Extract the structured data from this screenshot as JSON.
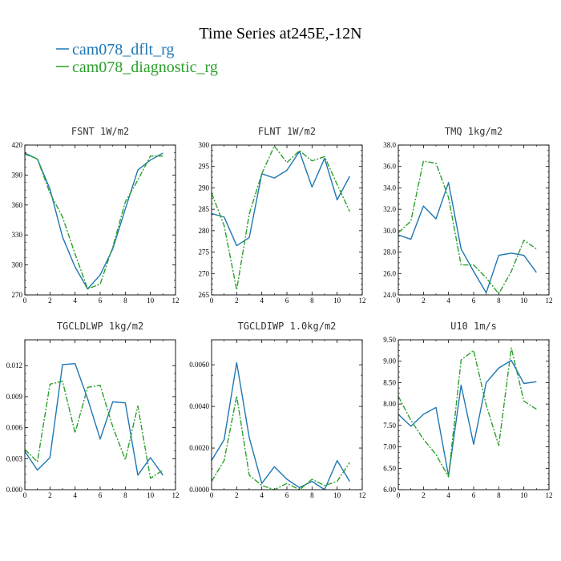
{
  "title": "Time Series at245E,-12N",
  "colors": {
    "series1": "#1f77b4",
    "series2": "#2ca02c"
  },
  "legend": [
    {
      "label": "cam078_dflt_rg",
      "color": "#1f77b4",
      "style": "solid"
    },
    {
      "label": "cam078_diagnostic_rg",
      "color": "#2ca02c",
      "style": "dashdot"
    }
  ],
  "chart_data": [
    {
      "type": "line",
      "title": "FSNT   1W/m2",
      "x": [
        0,
        1,
        2,
        3,
        4,
        5,
        6,
        7,
        8,
        9,
        10,
        11
      ],
      "xlim": [
        0,
        12
      ],
      "xticks": [
        "0",
        "2",
        "4",
        "6",
        "8",
        "10",
        "12"
      ],
      "ylim": [
        270,
        420
      ],
      "yticks": [
        "270",
        "300",
        "330",
        "360",
        "390",
        "420"
      ],
      "series": [
        {
          "name": "cam078_dflt_rg",
          "values": [
            412,
            406,
            376,
            328,
            298,
            276,
            290,
            316,
            356,
            395,
            405,
            412
          ]
        },
        {
          "name": "cam078_diagnostic_rg",
          "values": [
            411,
            406,
            372,
            348,
            311,
            276,
            281,
            318,
            363,
            385,
            409,
            409
          ]
        }
      ]
    },
    {
      "type": "line",
      "title": "FLNT   1W/m2",
      "x": [
        0,
        1,
        2,
        3,
        4,
        5,
        6,
        7,
        8,
        9,
        10,
        11
      ],
      "xlim": [
        0,
        12
      ],
      "xticks": [
        "0",
        "2",
        "4",
        "6",
        "8",
        "10",
        "12"
      ],
      "ylim": [
        265,
        300
      ],
      "yticks": [
        "265",
        "270",
        "275",
        "280",
        "285",
        "290",
        "295",
        "300"
      ],
      "series": [
        {
          "name": "cam078_dflt_rg",
          "values": [
            284.0,
            283.2,
            276.5,
            278.4,
            293.3,
            292.3,
            294.1,
            298.5,
            290.2,
            296.9,
            287.2,
            292.7
          ]
        },
        {
          "name": "cam078_diagnostic_rg",
          "values": [
            288.8,
            281.2,
            266.2,
            283.9,
            293.3,
            299.8,
            295.9,
            298.7,
            296.3,
            297.3,
            290.8,
            284.5
          ]
        }
      ]
    },
    {
      "type": "line",
      "title": "TMQ   1kg/m2",
      "x": [
        0,
        1,
        2,
        3,
        4,
        5,
        6,
        7,
        8,
        9,
        10,
        11
      ],
      "xlim": [
        0,
        12
      ],
      "xticks": [
        "0",
        "2",
        "4",
        "6",
        "8",
        "10",
        "12"
      ],
      "ylim": [
        24.0,
        38.0
      ],
      "yticks": [
        "24.0",
        "26.0",
        "28.0",
        "30.0",
        "32.0",
        "34.0",
        "36.0",
        "38.0"
      ],
      "series": [
        {
          "name": "cam078_dflt_rg",
          "values": [
            29.6,
            29.2,
            32.3,
            31.1,
            34.5,
            28.3,
            26.2,
            24.2,
            27.7,
            27.9,
            27.7,
            26.1
          ]
        },
        {
          "name": "cam078_diagnostic_rg",
          "values": [
            29.8,
            30.9,
            36.5,
            36.3,
            33.1,
            26.8,
            26.8,
            25.6,
            24.1,
            26.2,
            29.1,
            28.3
          ]
        }
      ]
    },
    {
      "type": "line",
      "title": "TGCLDLWP   1kg/m2",
      "x": [
        0,
        1,
        2,
        3,
        4,
        5,
        6,
        7,
        8,
        9,
        10,
        11
      ],
      "xlim": [
        0,
        12
      ],
      "xticks": [
        "0",
        "2",
        "4",
        "6",
        "8",
        "10",
        "12"
      ],
      "ylim": [
        0.0,
        0.0145
      ],
      "yticks": [
        "0.000",
        "0.003",
        "0.006",
        "0.009",
        "0.012"
      ],
      "ytick_values": [
        0.0,
        0.003,
        0.006,
        0.009,
        0.012
      ],
      "series": [
        {
          "name": "cam078_dflt_rg",
          "values": [
            0.0037,
            0.0019,
            0.0031,
            0.0121,
            0.0122,
            0.0088,
            0.0049,
            0.0085,
            0.0084,
            0.0014,
            0.0031,
            0.0014
          ]
        },
        {
          "name": "cam078_diagnostic_rg",
          "values": [
            0.0039,
            0.0027,
            0.0102,
            0.0105,
            0.0055,
            0.0099,
            0.0101,
            0.0061,
            0.0029,
            0.0081,
            0.0011,
            0.0019
          ]
        }
      ]
    },
    {
      "type": "line",
      "title": "TGCLDIWP   1.0kg/m2",
      "x": [
        0,
        1,
        2,
        3,
        4,
        5,
        6,
        7,
        8,
        9,
        10,
        11
      ],
      "xlim": [
        0,
        12
      ],
      "xticks": [
        "0",
        "2",
        "4",
        "6",
        "8",
        "10",
        "12"
      ],
      "ylim": [
        0.0,
        0.0072
      ],
      "yticks": [
        "0.0000",
        "0.0020",
        "0.0040",
        "0.0060"
      ],
      "ytick_values": [
        0.0,
        0.002,
        0.004,
        0.006
      ],
      "series": [
        {
          "name": "cam078_dflt_rg",
          "values": [
            0.0014,
            0.0024,
            0.0061,
            0.0025,
            0.0003,
            0.0011,
            0.0005,
            0.0001,
            0.0004,
            0.0,
            0.0014,
            0.0004
          ]
        },
        {
          "name": "cam078_diagnostic_rg",
          "values": [
            0.0004,
            0.0014,
            0.0045,
            0.0007,
            0.0002,
            0.0,
            0.0003,
            0.0,
            0.0005,
            0.0002,
            0.0004,
            0.0013
          ]
        }
      ]
    },
    {
      "type": "line",
      "title": "U10   1m/s",
      "x": [
        0,
        1,
        2,
        3,
        4,
        5,
        6,
        7,
        8,
        9,
        10,
        11
      ],
      "xlim": [
        0,
        12
      ],
      "xticks": [
        "0",
        "2",
        "4",
        "6",
        "8",
        "10",
        "12"
      ],
      "ylim": [
        6.0,
        9.5
      ],
      "yticks": [
        "6.00",
        "6.50",
        "7.00",
        "7.50",
        "8.00",
        "8.50",
        "9.00",
        "9.50"
      ],
      "series": [
        {
          "name": "cam078_dflt_rg",
          "values": [
            7.76,
            7.48,
            7.76,
            7.92,
            6.32,
            8.44,
            7.06,
            8.5,
            8.84,
            9.02,
            8.48,
            8.52
          ]
        },
        {
          "name": "cam078_diagnostic_rg",
          "values": [
            8.18,
            7.62,
            7.18,
            6.82,
            6.3,
            9.03,
            9.25,
            7.98,
            7.03,
            9.31,
            8.07,
            7.88
          ]
        }
      ]
    }
  ]
}
